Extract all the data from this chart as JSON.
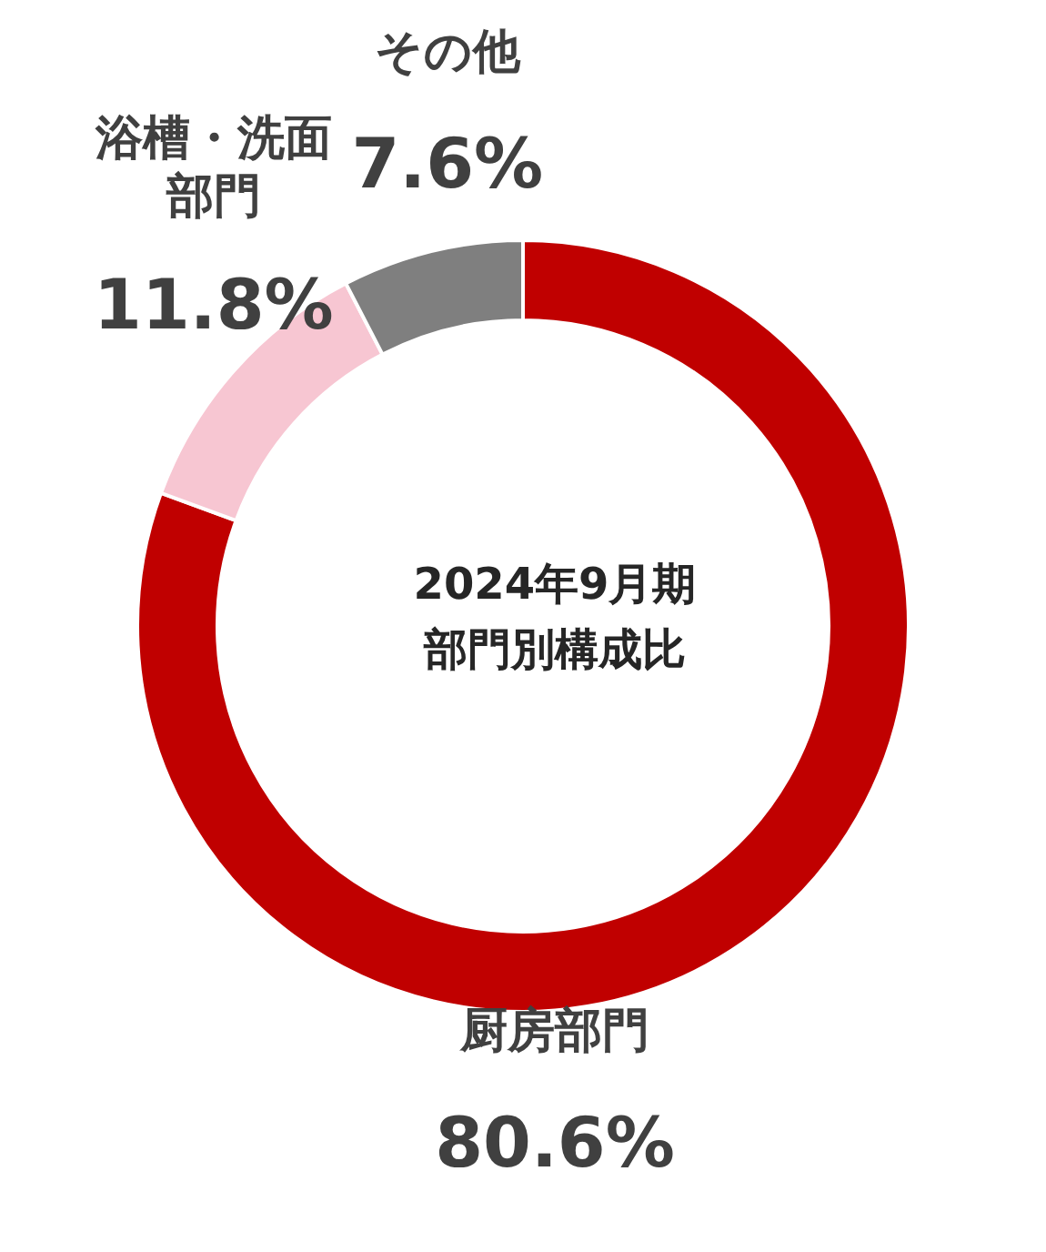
{
  "chart_data": {
    "type": "donut",
    "title": "2024年9月期",
    "subtitle": "部門別構成比",
    "categories": [
      "厨房部門",
      "浴槽・洗面部門",
      "その他"
    ],
    "values": [
      80.6,
      11.8,
      7.6
    ],
    "colors": [
      "#c00000",
      "#f7c6d2",
      "#7f7f7f"
    ],
    "value_labels": [
      "80.6%",
      "11.8%",
      "7.6%"
    ]
  }
}
